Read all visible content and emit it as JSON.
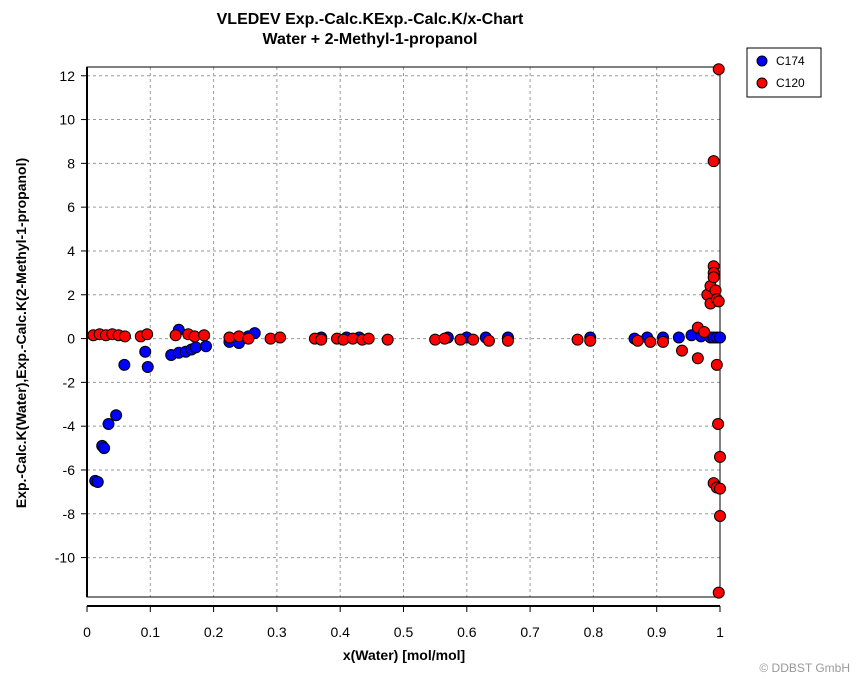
{
  "chart_data": {
    "type": "scatter",
    "title": "VLEDEV Exp.-Calc.KExp.-Calc.K/x-Chart",
    "subtitle": "Water + 2-Methyl-1-propanol",
    "xlabel": "x(Water) [mol/mol]",
    "ylabel": "Exp.-Calc.K(Water),Exp.-Calc.K(2-Methyl-1-propanol)",
    "xlim": [
      0,
      1
    ],
    "ylim": [
      -11.8,
      12.4
    ],
    "xticks": [
      "0",
      "0.1",
      "0.2",
      "0.3",
      "0.4",
      "0.5",
      "0.6",
      "0.7",
      "0.8",
      "0.9",
      "1"
    ],
    "xtick_values": [
      0,
      0.1,
      0.2,
      0.3,
      0.4,
      0.5,
      0.6,
      0.7,
      0.8,
      0.9,
      1
    ],
    "yticks": [
      "12",
      "10",
      "8",
      "6",
      "4",
      "2",
      "0",
      "-2",
      "-4",
      "-6",
      "-8",
      "-10"
    ],
    "ytick_values": [
      12,
      10,
      8,
      6,
      4,
      2,
      0,
      -2,
      -4,
      -6,
      -8,
      -10
    ],
    "grid": true,
    "legend_position": "top-right, outside plot",
    "series": [
      {
        "name": "C174",
        "color": "#0000ff",
        "points": [
          [
            0.013,
            -6.5
          ],
          [
            0.017,
            -6.55
          ],
          [
            0.024,
            -4.9
          ],
          [
            0.027,
            -5.0
          ],
          [
            0.034,
            -3.9
          ],
          [
            0.046,
            -3.5
          ],
          [
            0.059,
            -1.2
          ],
          [
            0.092,
            -0.6
          ],
          [
            0.096,
            -1.3
          ],
          [
            0.133,
            -0.75
          ],
          [
            0.145,
            0.4
          ],
          [
            0.145,
            -0.65
          ],
          [
            0.156,
            -0.6
          ],
          [
            0.165,
            -0.5
          ],
          [
            0.172,
            -0.4
          ],
          [
            0.188,
            -0.35
          ],
          [
            0.225,
            -0.15
          ],
          [
            0.24,
            -0.2
          ],
          [
            0.255,
            0.1
          ],
          [
            0.265,
            0.25
          ],
          [
            0.37,
            0.05
          ],
          [
            0.41,
            0.05
          ],
          [
            0.43,
            0.05
          ],
          [
            0.57,
            0.05
          ],
          [
            0.6,
            0.05
          ],
          [
            0.63,
            0.05
          ],
          [
            0.665,
            0.05
          ],
          [
            0.795,
            0.05
          ],
          [
            0.865,
            0.0
          ],
          [
            0.885,
            0.05
          ],
          [
            0.91,
            0.05
          ],
          [
            0.935,
            0.05
          ],
          [
            0.955,
            0.15
          ],
          [
            0.97,
            0.1
          ],
          [
            0.985,
            0.05
          ],
          [
            0.99,
            0.05
          ],
          [
            0.995,
            0.05
          ],
          [
            1.0,
            0.05
          ]
        ]
      },
      {
        "name": "C120",
        "color": "#ff0000",
        "points": [
          [
            0.01,
            0.15
          ],
          [
            0.02,
            0.2
          ],
          [
            0.03,
            0.15
          ],
          [
            0.04,
            0.2
          ],
          [
            0.05,
            0.15
          ],
          [
            0.06,
            0.1
          ],
          [
            0.085,
            0.1
          ],
          [
            0.095,
            0.2
          ],
          [
            0.14,
            0.15
          ],
          [
            0.16,
            0.2
          ],
          [
            0.17,
            0.1
          ],
          [
            0.185,
            0.15
          ],
          [
            0.225,
            0.05
          ],
          [
            0.24,
            0.1
          ],
          [
            0.255,
            0.0
          ],
          [
            0.29,
            0.0
          ],
          [
            0.305,
            0.05
          ],
          [
            0.36,
            0.0
          ],
          [
            0.37,
            -0.05
          ],
          [
            0.395,
            0.0
          ],
          [
            0.405,
            -0.05
          ],
          [
            0.42,
            0.0
          ],
          [
            0.435,
            -0.05
          ],
          [
            0.445,
            0.0
          ],
          [
            0.475,
            -0.05
          ],
          [
            0.55,
            -0.05
          ],
          [
            0.565,
            0.0
          ],
          [
            0.59,
            -0.05
          ],
          [
            0.61,
            -0.05
          ],
          [
            0.635,
            -0.1
          ],
          [
            0.665,
            -0.1
          ],
          [
            0.775,
            -0.05
          ],
          [
            0.795,
            -0.1
          ],
          [
            0.87,
            -0.1
          ],
          [
            0.89,
            -0.15
          ],
          [
            0.91,
            -0.15
          ],
          [
            0.94,
            -0.55
          ],
          [
            0.965,
            -0.9
          ],
          [
            0.965,
            0.5
          ],
          [
            0.975,
            0.3
          ],
          [
            0.98,
            2.0
          ],
          [
            0.985,
            2.4
          ],
          [
            0.985,
            1.6
          ],
          [
            0.99,
            3.3
          ],
          [
            0.99,
            3.0
          ],
          [
            0.99,
            2.8
          ],
          [
            0.993,
            2.2
          ],
          [
            0.995,
            1.8
          ],
          [
            0.998,
            1.7
          ],
          [
            0.99,
            8.1
          ],
          [
            0.998,
            12.3
          ],
          [
            0.99,
            -6.6
          ],
          [
            0.995,
            -6.8
          ],
          [
            0.995,
            -1.2
          ],
          [
            0.997,
            -3.9
          ],
          [
            1.0,
            -5.4
          ],
          [
            1.0,
            -6.85
          ],
          [
            1.0,
            -8.1
          ],
          [
            0.998,
            -11.6
          ]
        ]
      }
    ],
    "watermark": "© DDBST GmbH"
  }
}
